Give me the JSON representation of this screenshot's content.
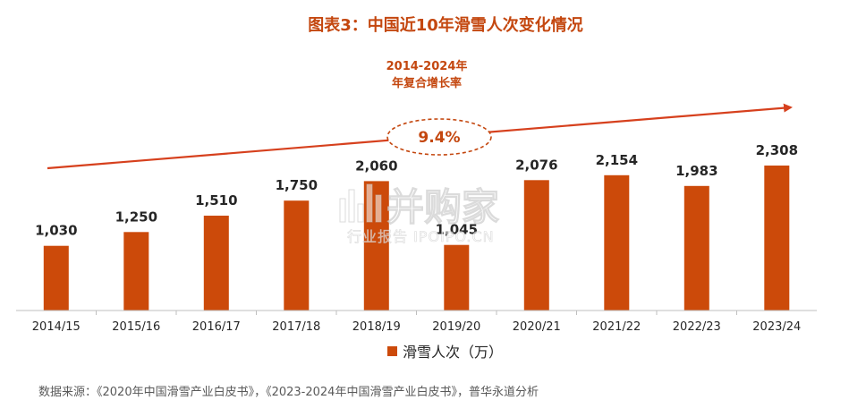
{
  "colors": {
    "bar": "#cc4a0a",
    "accent": "#c4470f",
    "axis": "#bfbfbf"
  },
  "chart_data": {
    "type": "bar",
    "title": "图表3：中国近10年滑雪人次变化情况",
    "categories": [
      "2014/15",
      "2015/16",
      "2016/17",
      "2017/18",
      "2018/19",
      "2019/20",
      "2020/21",
      "2021/22",
      "2022/23",
      "2023/24"
    ],
    "series": [
      {
        "name": "滑雪人次（万）",
        "values": [
          1030,
          1250,
          1510,
          1750,
          2060,
          1045,
          2076,
          2154,
          1983,
          2308
        ]
      }
    ],
    "value_labels": [
      "1,030",
      "1,250",
      "1,510",
      "1,750",
      "2,060",
      "1,045",
      "2,076",
      "2,154",
      "1,983",
      "2,308"
    ],
    "ylim": [
      0,
      2308
    ],
    "legend_position": "bottom",
    "annotation": {
      "label_line1": "2014-2024年",
      "label_line2": "年复合增长率",
      "value": "9.4%"
    },
    "source": "数据来源：《2020年中国滑雪产业白皮书》，《2023-2024年中国滑雪产业白皮书》，普华永道分析"
  },
  "watermark": {
    "main": "并购家",
    "sub": "行业报告 IPOIPO.CN"
  }
}
